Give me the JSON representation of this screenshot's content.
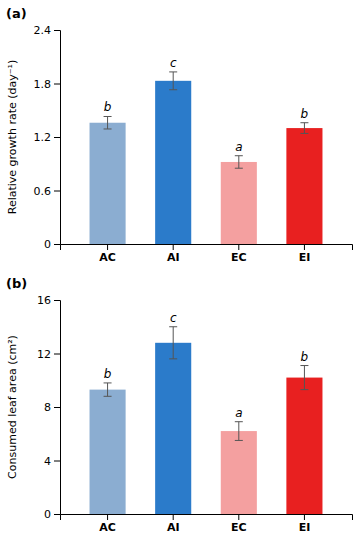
{
  "chart_data": [
    {
      "type": "bar",
      "title": "(a)",
      "categories": [
        "AC",
        "AI",
        "EC",
        "EI"
      ],
      "values": [
        1.36,
        1.83,
        0.92,
        1.3
      ],
      "errors": [
        0.07,
        0.1,
        0.07,
        0.06
      ],
      "annotations": [
        "b",
        "c",
        "a",
        "b"
      ],
      "colors": [
        "#8BADD1",
        "#2B7BCA",
        "#F4A0A0",
        "#E82020"
      ],
      "ylabel": "Relative growth rate (day⁻¹)",
      "ylim": [
        0,
        2.4
      ],
      "yticks": [
        0,
        0.6,
        1.2,
        1.8,
        2.4
      ],
      "grid": false
    },
    {
      "type": "bar",
      "title": "(b)",
      "categories": [
        "AC",
        "AI",
        "EC",
        "EI"
      ],
      "values": [
        9.3,
        12.8,
        6.2,
        10.2
      ],
      "errors": [
        0.5,
        1.2,
        0.7,
        0.9
      ],
      "annotations": [
        "b",
        "c",
        "a",
        "b"
      ],
      "colors": [
        "#8BADD1",
        "#2B7BCA",
        "#F4A0A0",
        "#E82020"
      ],
      "ylabel": "Consumed leaf area (cm²)",
      "ylim": [
        0,
        16
      ],
      "yticks": [
        0,
        4,
        8,
        12,
        16
      ],
      "grid": false
    }
  ]
}
